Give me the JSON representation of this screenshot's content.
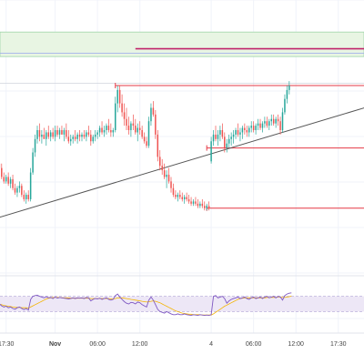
{
  "chart_data": {
    "type": "candlestick",
    "grid": true,
    "colors": {
      "up": "#26a69a",
      "down": "#ef5350",
      "level_line": "#e53945",
      "zone_fill": "#e8f5e3",
      "zone_border": "#9fd4a8",
      "zone_mid_line": "#9aa6ee",
      "zone_top_line": "#c0246a",
      "trendline": "#555555",
      "rsi_line": "#7e57c2",
      "rsi_ma": "#f4b400",
      "rsi_band": "#ede7f6"
    },
    "x_tick_labels": [
      {
        "label": "17:30",
        "t": 6
      },
      {
        "label": "Nov",
        "t": 28
      },
      {
        "label": "06:00",
        "t": 47
      },
      {
        "label": "12:00",
        "t": 66
      },
      {
        "label": "4",
        "t": 98
      },
      {
        "label": "06:00",
        "t": 117
      },
      {
        "label": "12:00",
        "t": 136
      },
      {
        "label": "17:30",
        "t": 155
      }
    ],
    "price_scale": [
      0,
      100
    ],
    "candles": [
      [
        44,
        46,
        40,
        42
      ],
      [
        42,
        47,
        41,
        46
      ],
      [
        46,
        49,
        44,
        45
      ],
      [
        45,
        47,
        42,
        43
      ],
      [
        43,
        45,
        38,
        39
      ],
      [
        39,
        41,
        36,
        37
      ],
      [
        37,
        40,
        36,
        39
      ],
      [
        39,
        41,
        35,
        36
      ],
      [
        36,
        39,
        34,
        38
      ],
      [
        38,
        40,
        33,
        34
      ],
      [
        34,
        36,
        31,
        32
      ],
      [
        32,
        35,
        30,
        34
      ],
      [
        34,
        37,
        32,
        35
      ],
      [
        35,
        36,
        30,
        31
      ],
      [
        31,
        33,
        28,
        29
      ],
      [
        29,
        32,
        27,
        31
      ],
      [
        31,
        33,
        28,
        29
      ],
      [
        29,
        43,
        28,
        41
      ],
      [
        41,
        52,
        40,
        50
      ],
      [
        50,
        58,
        48,
        56
      ],
      [
        56,
        62,
        54,
        60
      ],
      [
        60,
        63,
        55,
        57
      ],
      [
        57,
        60,
        54,
        58
      ],
      [
        58,
        61,
        56,
        56
      ],
      [
        56,
        60,
        53,
        59
      ],
      [
        59,
        62,
        56,
        57
      ],
      [
        57,
        60,
        55,
        59
      ],
      [
        59,
        61,
        56,
        57
      ],
      [
        57,
        62,
        55,
        60
      ],
      [
        60,
        62,
        57,
        58
      ],
      [
        58,
        61,
        56,
        60
      ],
      [
        60,
        62,
        58,
        58
      ],
      [
        58,
        61,
        55,
        60
      ],
      [
        60,
        63,
        56,
        57
      ],
      [
        57,
        60,
        54,
        55
      ],
      [
        55,
        58,
        53,
        56
      ],
      [
        56,
        58,
        54,
        57
      ],
      [
        57,
        60,
        55,
        56
      ],
      [
        56,
        59,
        54,
        58
      ],
      [
        58,
        60,
        55,
        57
      ],
      [
        57,
        59,
        55,
        58
      ],
      [
        58,
        60,
        56,
        57
      ],
      [
        57,
        60,
        55,
        59
      ],
      [
        59,
        62,
        57,
        58
      ],
      [
        58,
        60,
        53,
        55
      ],
      [
        55,
        58,
        54,
        57
      ],
      [
        57,
        60,
        55,
        58
      ],
      [
        58,
        60,
        56,
        59
      ],
      [
        59,
        62,
        57,
        61
      ],
      [
        61,
        64,
        58,
        59
      ],
      [
        59,
        62,
        57,
        60
      ],
      [
        60,
        63,
        58,
        62
      ],
      [
        62,
        65,
        59,
        60
      ],
      [
        60,
        63,
        57,
        59
      ],
      [
        59,
        61,
        57,
        60
      ],
      [
        60,
        75,
        59,
        72
      ],
      [
        72,
        80,
        68,
        78
      ],
      [
        78,
        80,
        70,
        72
      ],
      [
        72,
        76,
        66,
        68
      ],
      [
        68,
        72,
        62,
        65
      ],
      [
        65,
        70,
        60,
        62
      ],
      [
        62,
        66,
        58,
        60
      ],
      [
        60,
        64,
        57,
        63
      ],
      [
        63,
        67,
        60,
        62
      ],
      [
        62,
        65,
        58,
        59
      ],
      [
        59,
        63,
        55,
        61
      ],
      [
        61,
        64,
        58,
        60
      ],
      [
        60,
        62,
        56,
        57
      ],
      [
        57,
        59,
        54,
        55
      ],
      [
        55,
        57,
        52,
        53
      ],
      [
        53,
        66,
        52,
        64
      ],
      [
        64,
        72,
        62,
        70
      ],
      [
        70,
        73,
        66,
        67
      ],
      [
        67,
        69,
        56,
        58
      ],
      [
        58,
        60,
        46,
        48
      ],
      [
        48,
        51,
        42,
        44
      ],
      [
        44,
        47,
        40,
        42
      ],
      [
        42,
        45,
        38,
        39
      ],
      [
        39,
        42,
        34,
        40
      ],
      [
        40,
        43,
        36,
        37
      ],
      [
        37,
        39,
        32,
        34
      ],
      [
        34,
        36,
        30,
        31
      ],
      [
        31,
        33,
        29,
        30
      ],
      [
        30,
        32,
        28,
        31
      ],
      [
        31,
        33,
        29,
        30
      ],
      [
        30,
        32,
        28,
        29
      ],
      [
        29,
        31,
        27,
        30
      ],
      [
        30,
        32,
        28,
        29
      ],
      [
        29,
        31,
        27,
        28
      ],
      [
        28,
        30,
        26,
        27
      ],
      [
        27,
        29,
        26,
        28
      ],
      [
        28,
        30,
        26,
        27
      ],
      [
        27,
        29,
        25,
        26
      ],
      [
        26,
        28,
        25,
        27
      ],
      [
        27,
        29,
        25,
        26
      ],
      [
        26,
        28,
        24,
        25
      ],
      [
        25,
        27,
        24,
        26
      ],
      [
        26,
        28,
        24,
        25
      ],
      [
        46,
        57,
        45,
        55
      ],
      [
        55,
        60,
        53,
        58
      ],
      [
        58,
        62,
        55,
        56
      ],
      [
        56,
        60,
        53,
        58
      ],
      [
        58,
        62,
        55,
        60
      ],
      [
        60,
        63,
        56,
        57
      ],
      [
        57,
        59,
        50,
        52
      ],
      [
        52,
        56,
        50,
        54
      ],
      [
        54,
        58,
        52,
        56
      ],
      [
        56,
        59,
        53,
        57
      ],
      [
        57,
        60,
        54,
        58
      ],
      [
        58,
        61,
        56,
        60
      ],
      [
        60,
        63,
        57,
        58
      ],
      [
        58,
        61,
        55,
        59
      ],
      [
        59,
        62,
        56,
        61
      ],
      [
        61,
        63,
        58,
        60
      ],
      [
        60,
        62,
        57,
        59
      ],
      [
        59,
        62,
        57,
        61
      ],
      [
        61,
        64,
        59,
        62
      ],
      [
        62,
        64,
        59,
        60
      ],
      [
        60,
        63,
        58,
        62
      ],
      [
        62,
        65,
        60,
        63
      ],
      [
        63,
        65,
        60,
        61
      ],
      [
        61,
        64,
        59,
        63
      ],
      [
        63,
        66,
        61,
        64
      ],
      [
        64,
        66,
        61,
        62
      ],
      [
        62,
        65,
        60,
        64
      ],
      [
        64,
        67,
        62,
        65
      ],
      [
        65,
        67,
        62,
        63
      ],
      [
        63,
        66,
        61,
        65
      ],
      [
        65,
        67,
        62,
        64
      ],
      [
        64,
        66,
        58,
        60
      ],
      [
        60,
        70,
        59,
        68
      ],
      [
        68,
        76,
        67,
        74
      ],
      [
        74,
        80,
        72,
        78
      ],
      [
        78,
        82,
        76,
        80
      ]
    ],
    "horizontal_levels": [
      {
        "price": 80,
        "from_t": 55
      },
      {
        "price": 52,
        "from_t": 96
      },
      {
        "price": 25,
        "from_t": 96
      }
    ],
    "zone": {
      "low": 93,
      "high": 104,
      "mid": 94.5,
      "top_line": 96.5,
      "top_line_from_t": 64
    },
    "trendline": {
      "t1": 0,
      "p1": 20,
      "t2": 170,
      "p2": 71
    },
    "rsi": {
      "levels": [
        30,
        70
      ],
      "values": [
        60,
        58,
        55,
        50,
        45,
        42,
        44,
        40,
        42,
        38,
        36,
        40,
        42,
        38,
        35,
        38,
        34,
        62,
        70,
        72,
        73,
        70,
        68,
        66,
        69,
        66,
        67,
        64,
        68,
        65,
        67,
        66,
        65,
        64,
        63,
        64,
        66,
        64,
        66,
        65,
        66,
        64,
        67,
        66,
        58,
        62,
        64,
        63,
        65,
        62,
        64,
        66,
        62,
        60,
        62,
        72,
        76,
        68,
        62,
        56,
        52,
        50,
        54,
        53,
        50,
        55,
        53,
        48,
        45,
        42,
        60,
        68,
        60,
        48,
        36,
        30,
        28,
        26,
        30,
        27,
        24,
        22,
        22,
        24,
        22,
        22,
        24,
        22,
        21,
        20,
        22,
        21,
        20,
        22,
        21,
        20,
        21,
        20,
        22,
        70,
        72,
        66,
        68,
        70,
        64,
        52,
        58,
        62,
        64,
        66,
        68,
        64,
        66,
        68,
        64,
        62,
        66,
        68,
        64,
        66,
        68,
        64,
        68,
        70,
        66,
        68,
        70,
        66,
        70,
        68,
        60,
        72,
        76,
        78,
        79
      ],
      "ma": [
        52,
        51,
        50,
        49,
        48,
        46,
        45,
        44,
        43,
        42,
        41,
        41,
        41,
        40,
        40,
        40,
        39,
        42,
        45,
        48,
        51,
        54,
        57,
        60,
        63,
        65,
        66,
        67,
        67,
        67,
        67,
        66,
        66,
        66,
        66,
        65,
        65,
        65,
        65,
        65,
        65,
        65,
        65,
        65,
        64,
        64,
        64,
        64,
        64,
        64,
        64,
        64,
        64,
        63,
        63,
        64,
        66,
        66,
        66,
        65,
        64,
        63,
        62,
        61,
        60,
        59,
        58,
        57,
        56,
        55,
        56,
        57,
        58,
        57,
        55,
        53,
        50,
        47,
        44,
        41,
        38,
        35,
        32,
        30,
        28,
        26,
        25,
        24,
        23,
        23,
        22,
        22,
        22,
        22,
        21,
        21,
        21,
        21,
        21,
        24,
        28,
        32,
        36,
        40,
        44,
        47,
        50,
        53,
        56,
        59,
        62,
        64,
        65,
        66,
        66,
        66,
        66,
        66,
        66,
        66,
        66,
        66,
        66,
        67,
        67,
        67,
        67,
        67,
        68,
        68,
        67,
        67,
        68,
        69,
        71
      ]
    }
  }
}
